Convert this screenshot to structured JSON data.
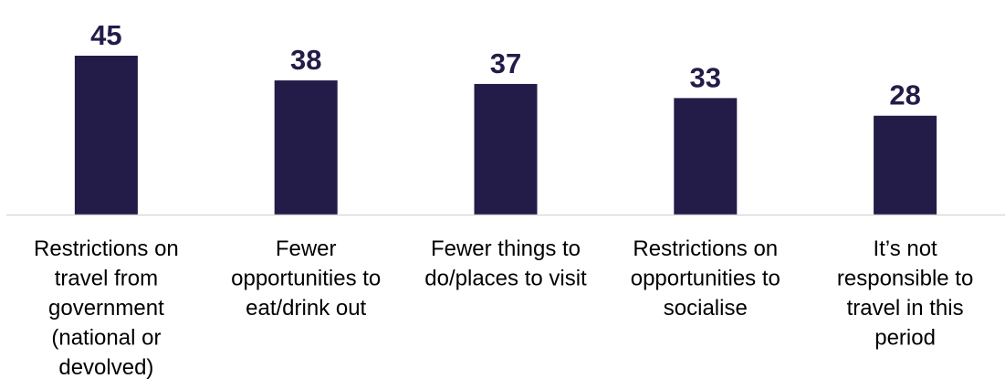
{
  "chart_data": {
    "type": "bar",
    "categories": [
      [
        "Restrictions on",
        "travel from",
        "government",
        "(national or",
        "devolved)"
      ],
      [
        "Fewer",
        "opportunities to",
        "eat/drink out"
      ],
      [
        "Fewer things to",
        "do/places to visit"
      ],
      [
        "Restrictions on",
        "opportunities to",
        "socialise"
      ],
      [
        "It’s not",
        "responsible to",
        "travel in this",
        "period"
      ]
    ],
    "values": [
      45,
      38,
      37,
      33,
      28
    ],
    "value_labels": [
      "45",
      "38",
      "37",
      "33",
      "28"
    ],
    "title": "",
    "xlabel": "",
    "ylabel": "",
    "ylim": [
      0,
      45
    ],
    "grid": false,
    "legend": "none",
    "colors": {
      "bar": "#231c49",
      "value_label": "#231c49",
      "category_label": "#000000",
      "axis": "#d9d9d9"
    }
  }
}
